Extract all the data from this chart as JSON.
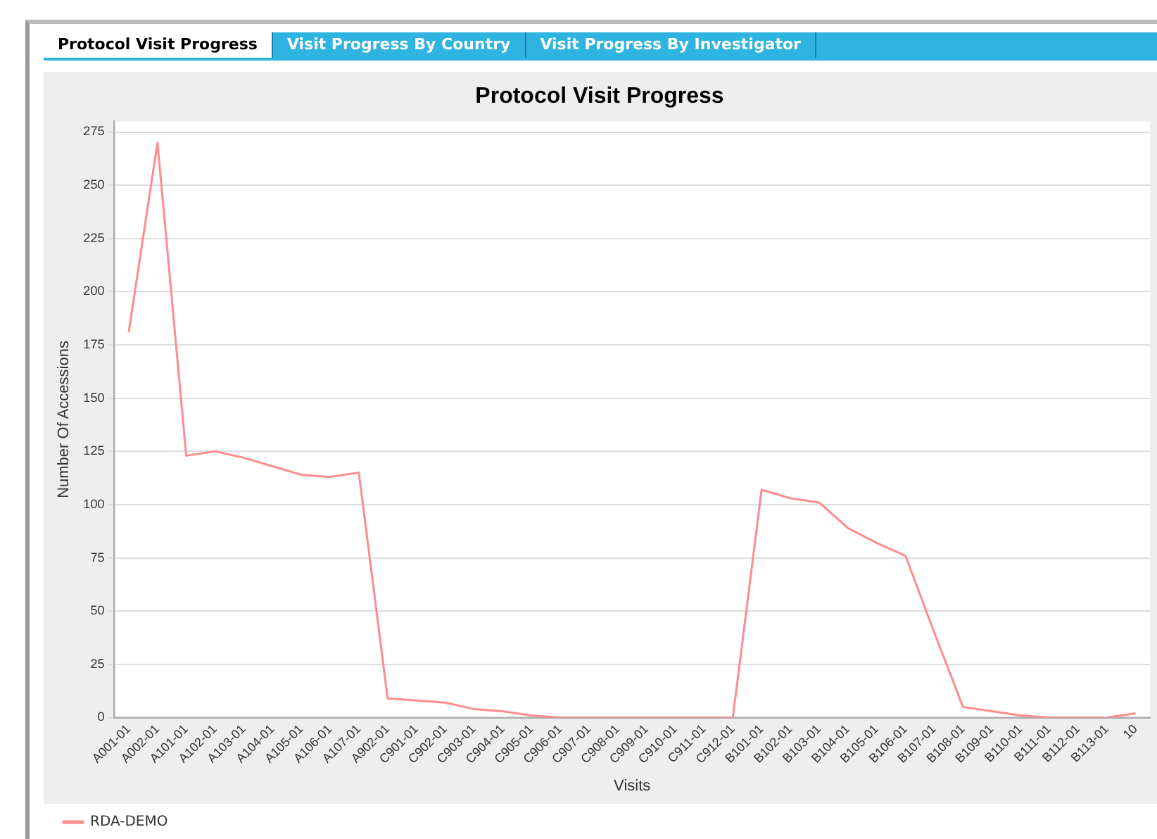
{
  "chart_data": {
    "type": "line",
    "title": "Protocol Visit Progress",
    "xlabel": "Visits",
    "ylabel": "Number Of Accessions",
    "annotations": [
      "Protocol Visit Progress",
      "Visit Progress By Country",
      "Visit Progress By Investigator"
    ],
    "categories": [
      "A001-01",
      "A002-01",
      "A101-01",
      "A102-01",
      "A103-01",
      "A104-01",
      "A105-01",
      "A106-01",
      "A107-01",
      "A902-01",
      "C901-01",
      "C902-01",
      "C903-01",
      "C904-01",
      "C905-01",
      "C906-01",
      "C907-01",
      "C908-01",
      "C909-01",
      "C910-01",
      "C911-01",
      "C912-01",
      "B101-01",
      "B102-01",
      "B103-01",
      "B104-01",
      "B105-01",
      "B106-01",
      "B107-01",
      "B108-01",
      "B109-01",
      "B110-01",
      "B111-01",
      "B112-01",
      "B113-01",
      "10"
    ],
    "series": [
      {
        "name": "RDA-DEMO",
        "color": "#ff8c8c",
        "values": [
          181,
          270,
          123,
          125,
          122,
          118,
          114,
          113,
          115,
          9,
          8,
          7,
          4,
          3,
          1,
          0,
          0,
          0,
          0,
          0,
          0,
          0,
          107,
          103,
          101,
          89,
          82,
          76,
          40,
          5,
          3,
          1,
          0,
          0,
          0,
          2
        ]
      }
    ],
    "ylim": [
      0,
      280
    ],
    "yticks": [
      0,
      25,
      50,
      75,
      100,
      125,
      150,
      175,
      200,
      225,
      250,
      275
    ],
    "grid": "y",
    "legend": "bottom left",
    "marker": "none",
    "line_style": "solid"
  }
}
